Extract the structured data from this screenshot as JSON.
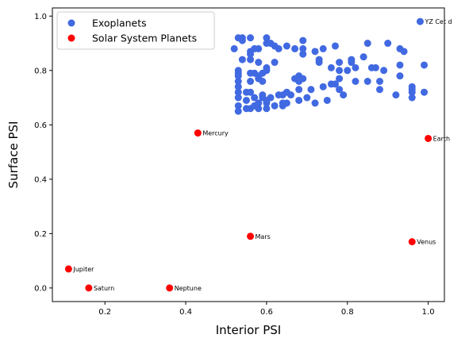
{
  "chart_data": {
    "type": "scatter",
    "xlabel": "Interior PSI",
    "ylabel": "Surface PSI",
    "xlim": [
      0.07,
      1.04
    ],
    "ylim": [
      -0.05,
      1.03
    ],
    "xticks": [
      0.2,
      0.4,
      0.6,
      0.8,
      1.0
    ],
    "yticks": [
      0.0,
      0.2,
      0.4,
      0.6,
      0.8,
      1.0
    ],
    "xtick_labels": [
      "0.2",
      "0.4",
      "0.6",
      "0.8",
      "1.0"
    ],
    "ytick_labels": [
      "0.0",
      "0.2",
      "0.4",
      "0.6",
      "0.8",
      "1.0"
    ],
    "grid": false,
    "legend_position": "top-left",
    "series": [
      {
        "name": "Exoplanets",
        "color": "#4169e1",
        "points": [
          [
            0.52,
            0.88
          ],
          [
            0.53,
            0.92
          ],
          [
            0.54,
            0.92
          ],
          [
            0.54,
            0.91
          ],
          [
            0.56,
            0.92
          ],
          [
            0.57,
            0.88
          ],
          [
            0.58,
            0.88
          ],
          [
            0.6,
            0.92
          ],
          [
            0.6,
            0.9
          ],
          [
            0.61,
            0.9
          ],
          [
            0.62,
            0.89
          ],
          [
            0.63,
            0.88
          ],
          [
            0.65,
            0.89
          ],
          [
            0.67,
            0.88
          ],
          [
            0.69,
            0.91
          ],
          [
            0.69,
            0.88
          ],
          [
            0.69,
            0.86
          ],
          [
            0.72,
            0.87
          ],
          [
            0.73,
            0.84
          ],
          [
            0.73,
            0.83
          ],
          [
            0.74,
            0.88
          ],
          [
            0.76,
            0.81
          ],
          [
            0.77,
            0.89
          ],
          [
            0.78,
            0.83
          ],
          [
            0.78,
            0.8
          ],
          [
            0.8,
            0.8
          ],
          [
            0.81,
            0.84
          ],
          [
            0.81,
            0.83
          ],
          [
            0.82,
            0.81
          ],
          [
            0.84,
            0.85
          ],
          [
            0.85,
            0.9
          ],
          [
            0.87,
            0.81
          ],
          [
            0.89,
            0.8
          ],
          [
            0.9,
            0.9
          ],
          [
            0.93,
            0.88
          ],
          [
            0.94,
            0.87
          ],
          [
            0.93,
            0.82
          ],
          [
            0.93,
            0.78
          ],
          [
            0.53,
            0.8
          ],
          [
            0.53,
            0.79
          ],
          [
            0.53,
            0.78
          ],
          [
            0.53,
            0.76
          ],
          [
            0.54,
            0.84
          ],
          [
            0.56,
            0.87
          ],
          [
            0.56,
            0.86
          ],
          [
            0.56,
            0.84
          ],
          [
            0.58,
            0.83
          ],
          [
            0.56,
            0.79
          ],
          [
            0.57,
            0.79
          ],
          [
            0.58,
            0.78
          ],
          [
            0.58,
            0.77
          ],
          [
            0.59,
            0.76
          ],
          [
            0.59,
            0.79
          ],
          [
            0.6,
            0.81
          ],
          [
            0.6,
            0.8
          ],
          [
            0.62,
            0.83
          ],
          [
            0.63,
            0.71
          ],
          [
            0.64,
            0.71
          ],
          [
            0.65,
            0.72
          ],
          [
            0.66,
            0.71
          ],
          [
            0.67,
            0.77
          ],
          [
            0.68,
            0.76
          ],
          [
            0.68,
            0.78
          ],
          [
            0.69,
            0.77
          ],
          [
            0.68,
            0.73
          ],
          [
            0.7,
            0.7
          ],
          [
            0.71,
            0.73
          ],
          [
            0.72,
            0.68
          ],
          [
            0.74,
            0.74
          ],
          [
            0.75,
            0.69
          ],
          [
            0.76,
            0.75
          ],
          [
            0.77,
            0.75
          ],
          [
            0.78,
            0.77
          ],
          [
            0.78,
            0.73
          ],
          [
            0.79,
            0.71
          ],
          [
            0.82,
            0.76
          ],
          [
            0.85,
            0.76
          ],
          [
            0.86,
            0.81
          ],
          [
            0.88,
            0.76
          ],
          [
            0.88,
            0.73
          ],
          [
            0.92,
            0.71
          ],
          [
            0.96,
            0.74
          ],
          [
            0.96,
            0.73
          ],
          [
            0.96,
            0.72
          ],
          [
            0.96,
            0.7
          ],
          [
            0.99,
            0.72
          ],
          [
            0.99,
            0.82
          ],
          [
            0.53,
            0.74
          ],
          [
            0.53,
            0.72
          ],
          [
            0.53,
            0.7
          ],
          [
            0.53,
            0.67
          ],
          [
            0.53,
            0.65
          ],
          [
            0.55,
            0.69
          ],
          [
            0.55,
            0.72
          ],
          [
            0.56,
            0.76
          ],
          [
            0.56,
            0.72
          ],
          [
            0.55,
            0.66
          ],
          [
            0.56,
            0.66
          ],
          [
            0.57,
            0.67
          ],
          [
            0.57,
            0.7
          ],
          [
            0.58,
            0.66
          ],
          [
            0.58,
            0.68
          ],
          [
            0.59,
            0.71
          ],
          [
            0.59,
            0.7
          ],
          [
            0.6,
            0.69
          ],
          [
            0.6,
            0.68
          ],
          [
            0.6,
            0.66
          ],
          [
            0.61,
            0.7
          ],
          [
            0.62,
            0.67
          ],
          [
            0.64,
            0.67
          ],
          [
            0.64,
            0.68
          ],
          [
            0.65,
            0.68
          ],
          [
            0.68,
            0.69
          ],
          [
            0.98,
            0.98
          ]
        ],
        "annotations": [
          {
            "text": "YZ Cet d",
            "x": 0.98,
            "y": 0.98
          }
        ]
      },
      {
        "name": "Solar System Planets",
        "color": "#ff0000",
        "points": [
          [
            0.43,
            0.57
          ],
          [
            1.0,
            0.55
          ],
          [
            0.56,
            0.19
          ],
          [
            0.96,
            0.17
          ],
          [
            0.11,
            0.07
          ],
          [
            0.16,
            0.0
          ],
          [
            0.36,
            0.0
          ]
        ],
        "annotations": [
          {
            "text": "Mercury",
            "x": 0.43,
            "y": 0.57
          },
          {
            "text": "Earth",
            "x": 1.0,
            "y": 0.55
          },
          {
            "text": "Mars",
            "x": 0.56,
            "y": 0.19
          },
          {
            "text": "Venus",
            "x": 0.96,
            "y": 0.17
          },
          {
            "text": "Jupiter",
            "x": 0.11,
            "y": 0.07
          },
          {
            "text": "Saturn",
            "x": 0.16,
            "y": 0.0
          },
          {
            "text": "Neptune",
            "x": 0.36,
            "y": 0.0
          }
        ]
      }
    ]
  }
}
